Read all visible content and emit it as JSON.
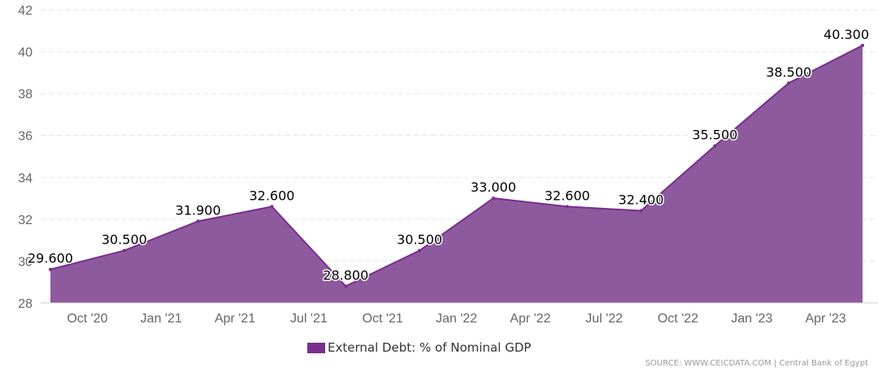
{
  "colors": {
    "area_fill": "#8e5a9e",
    "line": "#7b2d8e",
    "grid": "#e6e6e6",
    "legend_swatch": "#7b2d8e"
  },
  "legend": {
    "label": "External Debt: % of Nominal GDP"
  },
  "source": {
    "text": "SOURCE: WWW.CEICDATA.COM | Central Bank of Egypt"
  },
  "chart_data": {
    "type": "area",
    "title": "",
    "xlabel": "",
    "ylabel": "",
    "ylim": [
      28,
      42
    ],
    "y_ticks": [
      28,
      30,
      32,
      34,
      36,
      38,
      40,
      42
    ],
    "grid": true,
    "legend_position": "bottom-center",
    "x_ticks": [
      "Oct '20",
      "Jan '21",
      "Apr '21",
      "Jul '21",
      "Oct '21",
      "Jan '22",
      "Apr '22",
      "Jul '22",
      "Oct '22",
      "Jan '23",
      "Apr '23"
    ],
    "categories": [
      "Sep 2020",
      "Dec 2020",
      "Mar 2021",
      "Jun 2021",
      "Sep 2021",
      "Dec 2021",
      "Mar 2022",
      "Jun 2022",
      "Sep 2022",
      "Dec 2022",
      "Mar 2023",
      "Jun 2023"
    ],
    "series": [
      {
        "name": "External Debt: % of Nominal GDP",
        "values": [
          29.6,
          30.5,
          31.9,
          32.6,
          28.8,
          30.5,
          33.0,
          32.6,
          32.4,
          35.5,
          38.5,
          40.3
        ],
        "labels": [
          "29.600",
          "30.500",
          "31.900",
          "32.600",
          "28.800",
          "30.500",
          "33.000",
          "32.600",
          "32.400",
          "35.500",
          "38.500",
          "40.300"
        ]
      }
    ]
  }
}
